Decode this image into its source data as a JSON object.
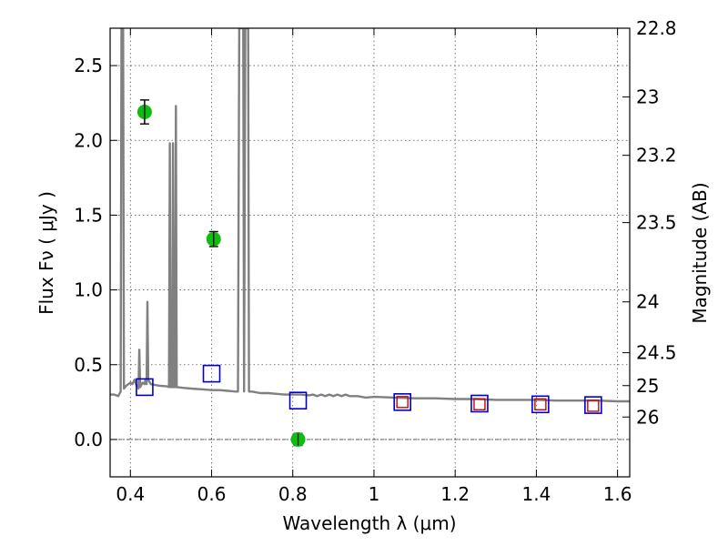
{
  "chart_data": {
    "type": "scatter",
    "xlabel": "Wavelength  λ (μm)",
    "ylabel": "Flux  Fν  ( μJy )",
    "y2label": "Magnitude (AB)",
    "xlim": [
      0.35,
      1.63
    ],
    "ylim": [
      -0.25,
      2.75
    ],
    "grid": true,
    "xticks": [
      {
        "value": 0.4,
        "label": "0.4"
      },
      {
        "value": 0.6,
        "label": "0.6"
      },
      {
        "value": 0.8,
        "label": "0.8"
      },
      {
        "value": 1.0,
        "label": "1"
      },
      {
        "value": 1.2,
        "label": "1.2"
      },
      {
        "value": 1.4,
        "label": "1.4"
      },
      {
        "value": 1.6,
        "label": "1.6"
      }
    ],
    "yticks": [
      {
        "value": 0.0,
        "label": "0.0"
      },
      {
        "value": 0.5,
        "label": "0.5"
      },
      {
        "value": 1.0,
        "label": "1.0"
      },
      {
        "value": 1.5,
        "label": "1.5"
      },
      {
        "value": 2.0,
        "label": "2.0"
      },
      {
        "value": 2.5,
        "label": "2.5"
      }
    ],
    "y2ticks": [
      {
        "flux": 2.75,
        "label": "22.8"
      },
      {
        "flux": 2.29,
        "label": "23"
      },
      {
        "flux": 1.9,
        "label": "23.2"
      },
      {
        "flux": 1.45,
        "label": "23.5"
      },
      {
        "flux": 0.92,
        "label": "24"
      },
      {
        "flux": 0.58,
        "label": "24.5"
      },
      {
        "flux": 0.36,
        "label": "25"
      },
      {
        "flux": 0.15,
        "label": "26"
      }
    ],
    "zero_line": 0.0,
    "series": [
      {
        "style": "line",
        "color": "#808080",
        "points": [
          [
            0.35,
            0.3
          ],
          [
            0.36,
            0.3
          ],
          [
            0.37,
            0.29
          ],
          [
            0.372,
            0.3
          ],
          [
            0.376,
            0.32
          ],
          [
            0.378,
            2.75
          ],
          [
            0.382,
            2.75
          ],
          [
            0.384,
            0.34
          ],
          [
            0.39,
            0.36
          ],
          [
            0.4,
            0.38
          ],
          [
            0.405,
            0.37
          ],
          [
            0.41,
            0.4
          ],
          [
            0.415,
            0.36
          ],
          [
            0.42,
            0.34
          ],
          [
            0.422,
            0.6
          ],
          [
            0.424,
            0.35
          ],
          [
            0.43,
            0.38
          ],
          [
            0.435,
            0.37
          ],
          [
            0.437,
            0.4
          ],
          [
            0.44,
            0.37
          ],
          [
            0.442,
            0.92
          ],
          [
            0.444,
            0.4
          ],
          [
            0.45,
            0.37
          ],
          [
            0.47,
            0.36
          ],
          [
            0.49,
            0.355
          ],
          [
            0.495,
            0.35
          ],
          [
            0.497,
            1.98
          ],
          [
            0.499,
            0.35
          ],
          [
            0.503,
            0.35
          ],
          [
            0.505,
            1.98
          ],
          [
            0.507,
            0.35
          ],
          [
            0.51,
            0.35
          ],
          [
            0.512,
            2.23
          ],
          [
            0.514,
            0.35
          ],
          [
            0.53,
            0.345
          ],
          [
            0.55,
            0.34
          ],
          [
            0.58,
            0.335
          ],
          [
            0.6,
            0.33
          ],
          [
            0.62,
            0.33
          ],
          [
            0.64,
            0.325
          ],
          [
            0.66,
            0.32
          ],
          [
            0.665,
            0.32
          ],
          [
            0.668,
            2.75
          ],
          [
            0.678,
            2.75
          ],
          [
            0.68,
            0.32
          ],
          [
            0.683,
            2.75
          ],
          [
            0.69,
            2.75
          ],
          [
            0.692,
            0.32
          ],
          [
            0.7,
            0.32
          ],
          [
            0.72,
            0.31
          ],
          [
            0.74,
            0.31
          ],
          [
            0.76,
            0.305
          ],
          [
            0.78,
            0.3
          ],
          [
            0.8,
            0.3
          ],
          [
            0.82,
            0.3
          ],
          [
            0.84,
            0.295
          ],
          [
            0.85,
            0.3
          ],
          [
            0.86,
            0.29
          ],
          [
            0.87,
            0.3
          ],
          [
            0.88,
            0.29
          ],
          [
            0.89,
            0.3
          ],
          [
            0.9,
            0.29
          ],
          [
            0.91,
            0.3
          ],
          [
            0.92,
            0.29
          ],
          [
            0.93,
            0.3
          ],
          [
            0.94,
            0.29
          ],
          [
            0.96,
            0.29
          ],
          [
            0.98,
            0.28
          ],
          [
            1.0,
            0.285
          ],
          [
            1.05,
            0.28
          ],
          [
            1.1,
            0.275
          ],
          [
            1.15,
            0.275
          ],
          [
            1.2,
            0.27
          ],
          [
            1.25,
            0.27
          ],
          [
            1.3,
            0.265
          ],
          [
            1.35,
            0.265
          ],
          [
            1.4,
            0.265
          ],
          [
            1.45,
            0.26
          ],
          [
            1.5,
            0.26
          ],
          [
            1.55,
            0.26
          ],
          [
            1.6,
            0.255
          ],
          [
            1.63,
            0.255
          ]
        ]
      },
      {
        "style": "open-square",
        "color": "#0000cc",
        "points": [
          [
            0.435,
            0.35
          ],
          [
            0.6,
            0.44
          ],
          [
            0.813,
            0.26
          ],
          [
            1.07,
            0.25
          ],
          [
            1.26,
            0.24
          ],
          [
            1.41,
            0.235
          ],
          [
            1.54,
            0.23
          ]
        ]
      },
      {
        "style": "open-square-small",
        "color": "#cc0000",
        "points": [
          [
            1.07,
            0.25
          ],
          [
            1.26,
            0.235
          ],
          [
            1.41,
            0.235
          ],
          [
            1.54,
            0.225
          ]
        ]
      },
      {
        "style": "filled-circle-errorbar",
        "color": "#11bb11",
        "points": [
          {
            "x": 0.435,
            "y": 2.19,
            "err": 0.08
          },
          {
            "x": 0.605,
            "y": 1.34,
            "err": 0.05
          },
          {
            "x": 0.813,
            "y": 0.0,
            "err": 0.04
          }
        ]
      }
    ]
  }
}
